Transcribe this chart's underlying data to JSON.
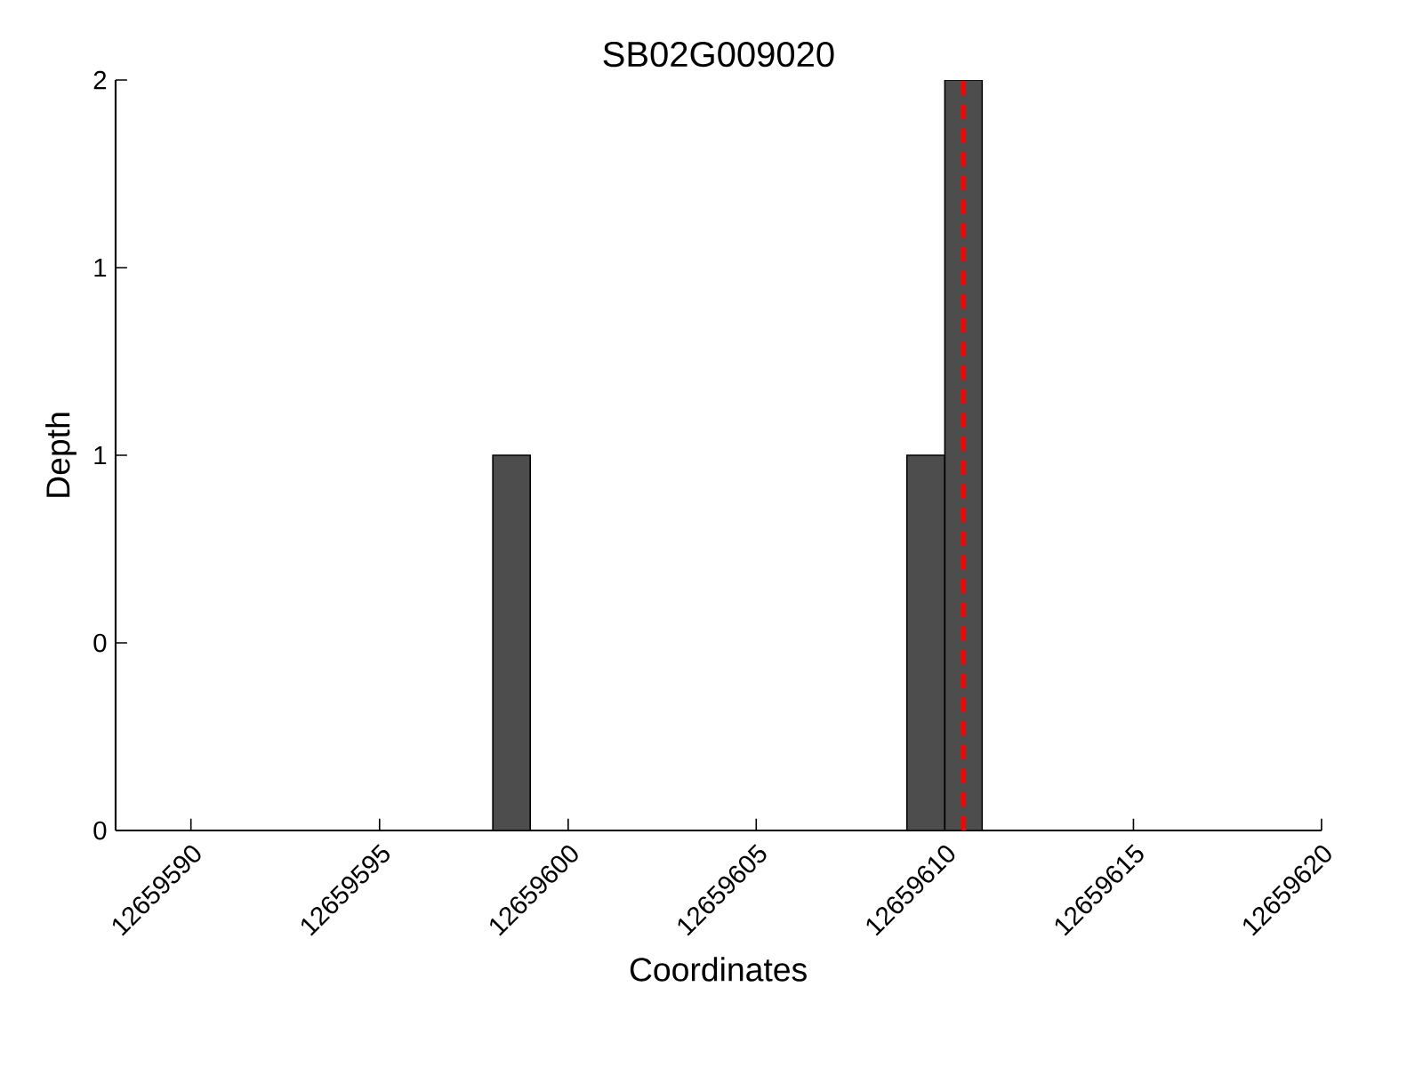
{
  "chart_data": {
    "type": "histogram",
    "title": "SB02G009020",
    "xlabel": "Coordinates",
    "ylabel": "Depth",
    "bins": [
      12659598,
      12659599,
      12659600,
      12659601,
      12659602,
      12659603,
      12659604,
      12659605,
      12659606,
      12659607,
      12659608,
      12659609,
      12659610,
      12659611
    ],
    "values": [
      1,
      0,
      0,
      0,
      0,
      0,
      0,
      0,
      0,
      0,
      0,
      1,
      2
    ],
    "color": "#4d4d4d",
    "xlim": [
      12659588,
      12659620
    ],
    "xticks": [
      12659590,
      12659595,
      12659600,
      12659605,
      12659610,
      12659615,
      12659620
    ],
    "ylim": [
      0,
      2
    ],
    "yticks": [
      0,
      {
        "value": 0.5,
        "label": "0"
      },
      1,
      {
        "value": 1.5,
        "label": "1"
      },
      2
    ],
    "ref_lines": [
      {
        "axis": "x",
        "value": 12659610.5,
        "color": "#ff0000",
        "line_style": "dashed"
      }
    ],
    "grid": false
  }
}
